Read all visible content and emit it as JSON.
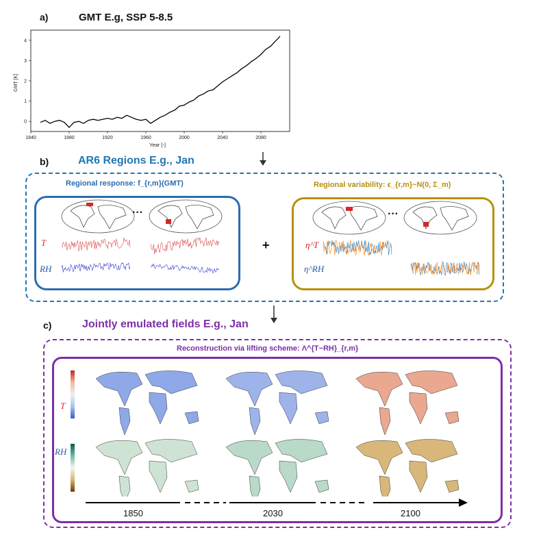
{
  "panel_a": {
    "label": "a)",
    "title": "GMT E.g, SSP 5-8.5",
    "chart_data": {
      "type": "line",
      "title": "GMT E.g, SSP 5-8.5",
      "xlabel": "Year [-]",
      "ylabel": "GMT [K]",
      "xlim": [
        1840,
        2110
      ],
      "ylim": [
        -0.5,
        4.5
      ],
      "xticks": [
        1840,
        1880,
        1920,
        1960,
        2000,
        2040,
        2080
      ],
      "yticks": [
        0,
        1,
        2,
        3,
        4
      ],
      "series": [
        {
          "x": [
            1850,
            1855,
            1860,
            1865,
            1870,
            1875,
            1880,
            1885,
            1890,
            1895,
            1900,
            1905,
            1910,
            1915,
            1920,
            1925,
            1930,
            1935,
            1940,
            1945,
            1950,
            1955,
            1960,
            1965,
            1970,
            1975,
            1980,
            1985,
            1990,
            1995,
            2000,
            2005,
            2010,
            2015,
            2020,
            2025,
            2030,
            2035,
            2040,
            2045,
            2050,
            2055,
            2060,
            2065,
            2070,
            2075,
            2080,
            2085,
            2090,
            2095,
            2100
          ],
          "y": [
            -0.05,
            0.05,
            -0.1,
            0.0,
            0.05,
            -0.05,
            -0.3,
            -0.05,
            0.0,
            -0.1,
            0.05,
            0.1,
            0.05,
            0.1,
            0.15,
            0.1,
            0.2,
            0.15,
            0.3,
            0.2,
            0.1,
            0.05,
            0.1,
            -0.1,
            0.05,
            0.2,
            0.3,
            0.45,
            0.55,
            0.75,
            0.8,
            0.95,
            1.05,
            1.25,
            1.35,
            1.5,
            1.55,
            1.75,
            1.95,
            2.1,
            2.25,
            2.4,
            2.6,
            2.75,
            2.95,
            3.1,
            3.3,
            3.55,
            3.7,
            3.95,
            4.2
          ]
        }
      ]
    }
  },
  "panel_b": {
    "label": "b)",
    "title": "AR6 Regions E.g., Jan",
    "response_title": "Regional response: f_{r,m}(GMT)",
    "variability_title": "Regional variability: ϵ_{r,m}~N(0, Σ_m)",
    "ellipsis": "···",
    "plus": "+",
    "var_T": "T",
    "var_RH": "RH",
    "eta_T": "η^T",
    "eta_RH": "η^RH"
  },
  "panel_c": {
    "label": "c)",
    "title": "Jointly emulated fields E.g., Jan",
    "recon_title": "Reconstruction via lifting scheme: Λ^{T−RH}_{r,m}",
    "var_T": "T",
    "var_RH": "RH",
    "years": [
      "1850",
      "2030",
      "2100"
    ]
  },
  "colors": {
    "blue": "#1f77b4",
    "purple": "#7b2fa6",
    "gold": "#b8900c",
    "red": "#d62728",
    "orange": "#ff7f0e"
  }
}
